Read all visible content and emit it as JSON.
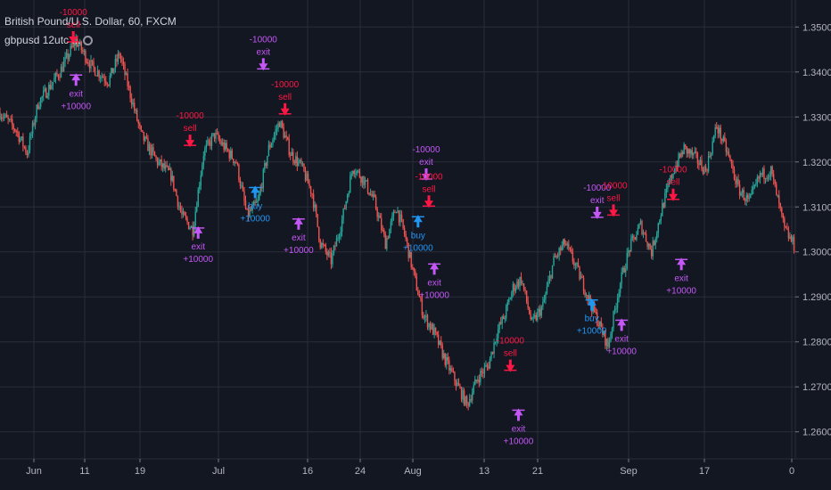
{
  "header": {
    "title": "British Pound/U.S. Dollar, 60, FXCM",
    "study": "gbpusd 12utc ..."
  },
  "colors": {
    "background": "#131722",
    "grid": "#2a2e39",
    "candle_up": "#26a69a",
    "candle_down": "#ef5350",
    "buy": "#2196f3",
    "sell": "#ff1744",
    "exit": "#c457f5"
  },
  "chart_data": {
    "type": "candlestick",
    "symbol": "British Pound/U.S. Dollar",
    "interval": "60",
    "source": "FXCM",
    "y_ticks": [
      "1.3500",
      "1.3400",
      "1.3300",
      "1.3200",
      "1.3100",
      "1.3000",
      "1.2900",
      "1.2800",
      "1.2700",
      "1.2600"
    ],
    "ylim": [
      1.254,
      1.356
    ],
    "x_ticks": [
      "Jun",
      "11",
      "19",
      "Jul",
      "16",
      "24",
      "Aug",
      "13",
      "21",
      "Sep",
      "17",
      "0"
    ],
    "price_path": [
      [
        0,
        1.331
      ],
      [
        6,
        1.327
      ],
      [
        10,
        1.322
      ],
      [
        14,
        1.333
      ],
      [
        22,
        1.34
      ],
      [
        28,
        1.347
      ],
      [
        34,
        1.341
      ],
      [
        40,
        1.338
      ],
      [
        44,
        1.344
      ],
      [
        48,
        1.335
      ],
      [
        52,
        1.326
      ],
      [
        58,
        1.32
      ],
      [
        63,
        1.317
      ],
      [
        67,
        1.308
      ],
      [
        71,
        1.305
      ],
      [
        75,
        1.322
      ],
      [
        79,
        1.326
      ],
      [
        83,
        1.323
      ],
      [
        87,
        1.32
      ],
      [
        91,
        1.308
      ],
      [
        95,
        1.311
      ],
      [
        99,
        1.323
      ],
      [
        103,
        1.329
      ],
      [
        107,
        1.322
      ],
      [
        111,
        1.319
      ],
      [
        115,
        1.313
      ],
      [
        118,
        1.302
      ],
      [
        122,
        1.298
      ],
      [
        126,
        1.307
      ],
      [
        130,
        1.319
      ],
      [
        134,
        1.316
      ],
      [
        138,
        1.311
      ],
      [
        142,
        1.302
      ],
      [
        146,
        1.31
      ],
      [
        149,
        1.304
      ],
      [
        152,
        1.296
      ],
      [
        156,
        1.286
      ],
      [
        160,
        1.282
      ],
      [
        164,
        1.276
      ],
      [
        168,
        1.271
      ],
      [
        172,
        1.266
      ],
      [
        176,
        1.272
      ],
      [
        180,
        1.275
      ],
      [
        183,
        1.282
      ],
      [
        186,
        1.286
      ],
      [
        189,
        1.292
      ],
      [
        192,
        1.294
      ],
      [
        196,
        1.284
      ],
      [
        200,
        1.288
      ],
      [
        204,
        1.298
      ],
      [
        208,
        1.302
      ],
      [
        212,
        1.297
      ],
      [
        216,
        1.291
      ],
      [
        220,
        1.285
      ],
      [
        224,
        1.279
      ],
      [
        228,
        1.292
      ],
      [
        232,
        1.301
      ],
      [
        236,
        1.306
      ],
      [
        240,
        1.3
      ],
      [
        244,
        1.31
      ],
      [
        248,
        1.318
      ],
      [
        252,
        1.323
      ],
      [
        256,
        1.321
      ],
      [
        260,
        1.318
      ],
      [
        264,
        1.328
      ],
      [
        268,
        1.322
      ],
      [
        272,
        1.314
      ],
      [
        276,
        1.311
      ],
      [
        280,
        1.317
      ],
      [
        284,
        1.318
      ],
      [
        289,
        1.305
      ],
      [
        293,
        1.301
      ]
    ],
    "trades": [
      {
        "type": "sell",
        "x": 27,
        "price": 1.3455,
        "action": "sell",
        "qty": "-10000"
      },
      {
        "type": "exit",
        "x": 28,
        "price": 1.3405,
        "action": "exit",
        "qty": "+10000"
      },
      {
        "type": "sell",
        "x": 70,
        "price": 1.3225,
        "action": "sell",
        "qty": "-10000"
      },
      {
        "type": "exit",
        "x": 73,
        "price": 1.3065,
        "action": "exit",
        "qty": "+10000"
      },
      {
        "type": "buy",
        "x": 94,
        "price": 1.3155,
        "action": "buy",
        "qty": "+10000"
      },
      {
        "type": "exit",
        "x": 97,
        "price": 1.3395,
        "action": "exit",
        "qty": "-10000"
      },
      {
        "type": "sell",
        "x": 105,
        "price": 1.3295,
        "action": "sell",
        "qty": "-10000"
      },
      {
        "type": "exit",
        "x": 110,
        "price": 1.3085,
        "action": "exit",
        "qty": "+10000"
      },
      {
        "type": "buy",
        "x": 154,
        "price": 1.309,
        "action": "buy",
        "qty": "+10000"
      },
      {
        "type": "exit",
        "x": 157,
        "price": 1.315,
        "action": "exit",
        "qty": "-10000"
      },
      {
        "type": "sell",
        "x": 158,
        "price": 1.309,
        "action": "sell",
        "qty": "-10000"
      },
      {
        "type": "exit",
        "x": 160,
        "price": 1.2985,
        "action": "exit",
        "qty": "+10000"
      },
      {
        "type": "sell",
        "x": 188,
        "price": 1.2725,
        "action": "sell",
        "qty": "-10000"
      },
      {
        "type": "exit",
        "x": 191,
        "price": 1.266,
        "action": "exit",
        "qty": "+10000"
      },
      {
        "type": "buy",
        "x": 218,
        "price": 1.2905,
        "action": "buy",
        "qty": "+10000"
      },
      {
        "type": "exit",
        "x": 220,
        "price": 1.3065,
        "action": "exit",
        "qty": "-10000"
      },
      {
        "type": "sell",
        "x": 226,
        "price": 1.307,
        "action": "sell",
        "qty": "-10000"
      },
      {
        "type": "exit",
        "x": 229,
        "price": 1.286,
        "action": "exit",
        "qty": "+10000"
      },
      {
        "type": "sell",
        "x": 248,
        "price": 1.3105,
        "action": "sell",
        "qty": "-10000"
      },
      {
        "type": "exit",
        "x": 251,
        "price": 1.2995,
        "action": "exit",
        "qty": "+10000"
      }
    ]
  }
}
